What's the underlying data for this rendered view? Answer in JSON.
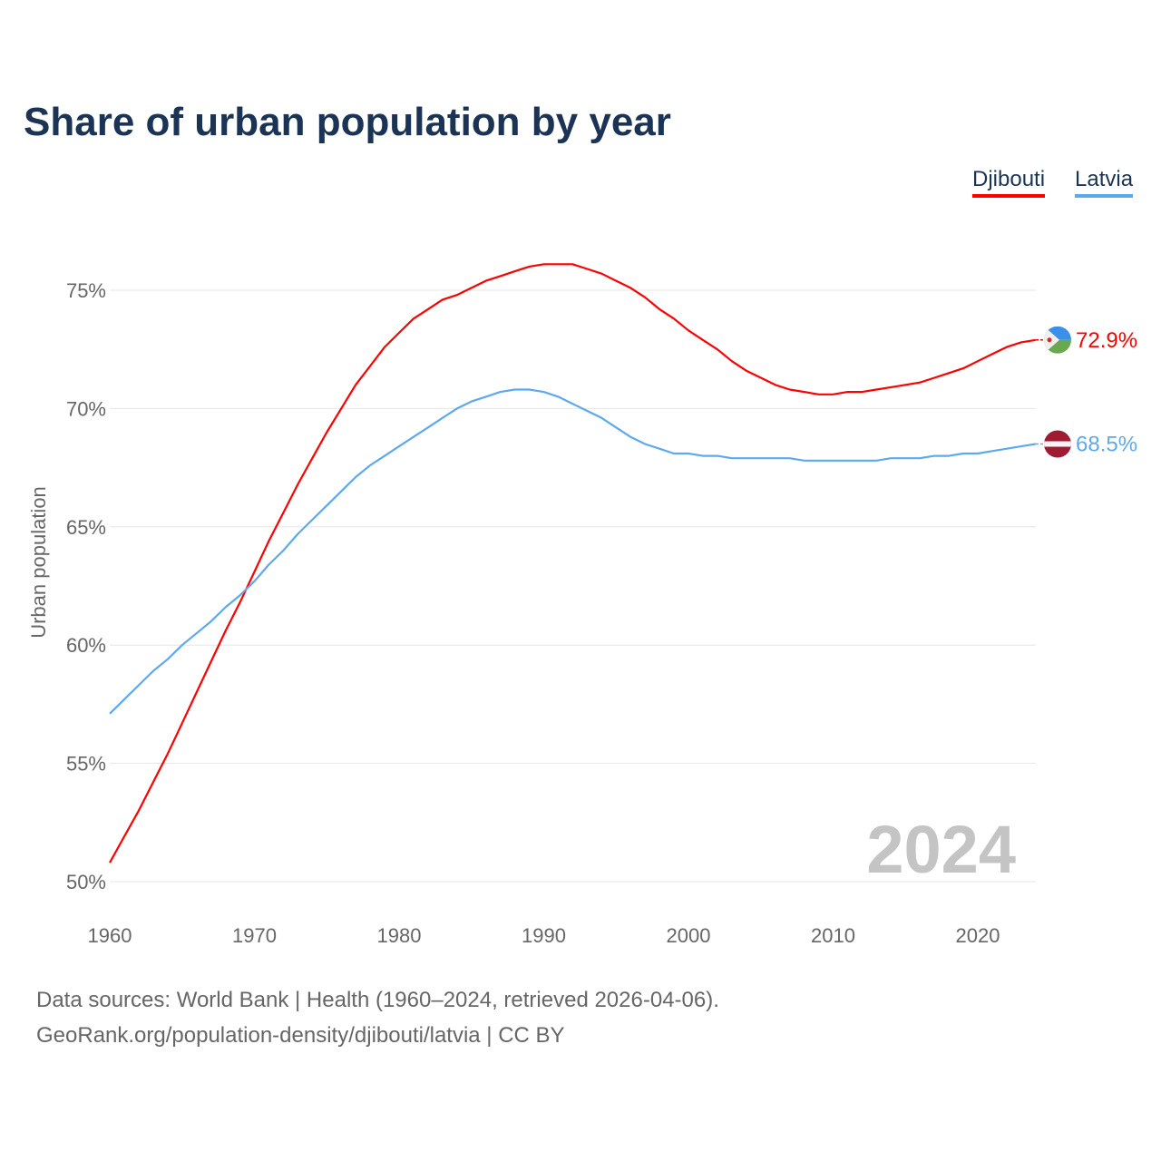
{
  "chart_data": {
    "type": "line",
    "title": "Share of urban population by year",
    "xlabel": "",
    "ylabel": "Urban population",
    "xlim": [
      1960,
      2024
    ],
    "ylim": [
      50,
      76.5
    ],
    "x_ticks": [
      "1960",
      "1970",
      "1980",
      "1990",
      "2000",
      "2010",
      "2020"
    ],
    "y_ticks": [
      "50%",
      "55%",
      "60%",
      "65%",
      "70%",
      "75%"
    ],
    "y_tick_values": [
      50,
      55,
      60,
      65,
      70,
      75
    ],
    "x_tick_values": [
      1960,
      1970,
      1980,
      1990,
      2000,
      2010,
      2020
    ],
    "grid": true,
    "legend_position": "top-right",
    "year_watermark": "2024",
    "x": [
      1960,
      1961,
      1962,
      1963,
      1964,
      1965,
      1966,
      1967,
      1968,
      1969,
      1970,
      1971,
      1972,
      1973,
      1974,
      1975,
      1976,
      1977,
      1978,
      1979,
      1980,
      1981,
      1982,
      1983,
      1984,
      1985,
      1986,
      1987,
      1988,
      1989,
      1990,
      1991,
      1992,
      1993,
      1994,
      1995,
      1996,
      1997,
      1998,
      1999,
      2000,
      2001,
      2002,
      2003,
      2004,
      2005,
      2006,
      2007,
      2008,
      2009,
      2010,
      2011,
      2012,
      2013,
      2014,
      2015,
      2016,
      2017,
      2018,
      2019,
      2020,
      2021,
      2022,
      2023,
      2024
    ],
    "series": [
      {
        "name": "Djibouti",
        "color": "#ff0000",
        "end_label": "72.9%",
        "values": [
          50.8,
          51.9,
          53.0,
          54.2,
          55.4,
          56.7,
          58.0,
          59.3,
          60.6,
          61.8,
          63.1,
          64.4,
          65.6,
          66.8,
          67.9,
          69.0,
          70.0,
          71.0,
          71.8,
          72.6,
          73.2,
          73.8,
          74.2,
          74.6,
          74.8,
          75.1,
          75.4,
          75.6,
          75.8,
          76.0,
          76.1,
          76.1,
          76.1,
          75.9,
          75.7,
          75.4,
          75.1,
          74.7,
          74.2,
          73.8,
          73.3,
          72.9,
          72.5,
          72.0,
          71.6,
          71.3,
          71.0,
          70.8,
          70.7,
          70.6,
          70.6,
          70.7,
          70.7,
          70.8,
          70.9,
          71.0,
          71.1,
          71.3,
          71.5,
          71.7,
          72.0,
          72.3,
          72.6,
          72.8,
          72.9
        ]
      },
      {
        "name": "Latvia",
        "color": "#5ea9ee",
        "end_label": "68.5%",
        "values": [
          57.1,
          57.7,
          58.3,
          58.9,
          59.4,
          60.0,
          60.5,
          61.0,
          61.6,
          62.1,
          62.7,
          63.4,
          64.0,
          64.7,
          65.3,
          65.9,
          66.5,
          67.1,
          67.6,
          68.0,
          68.4,
          68.8,
          69.2,
          69.6,
          70.0,
          70.3,
          70.5,
          70.7,
          70.8,
          70.8,
          70.7,
          70.5,
          70.2,
          69.9,
          69.6,
          69.2,
          68.8,
          68.5,
          68.3,
          68.1,
          68.1,
          68.0,
          68.0,
          67.9,
          67.9,
          67.9,
          67.9,
          67.9,
          67.8,
          67.8,
          67.8,
          67.8,
          67.8,
          67.8,
          67.9,
          67.9,
          67.9,
          68.0,
          68.0,
          68.1,
          68.1,
          68.2,
          68.3,
          68.4,
          68.5
        ]
      }
    ]
  },
  "footer": {
    "line1": "Data sources: World Bank | Health (1960–2024, retrieved 2026-04-06).",
    "line2": "GeoRank.org/population-density/djibouti/latvia | CC BY"
  }
}
